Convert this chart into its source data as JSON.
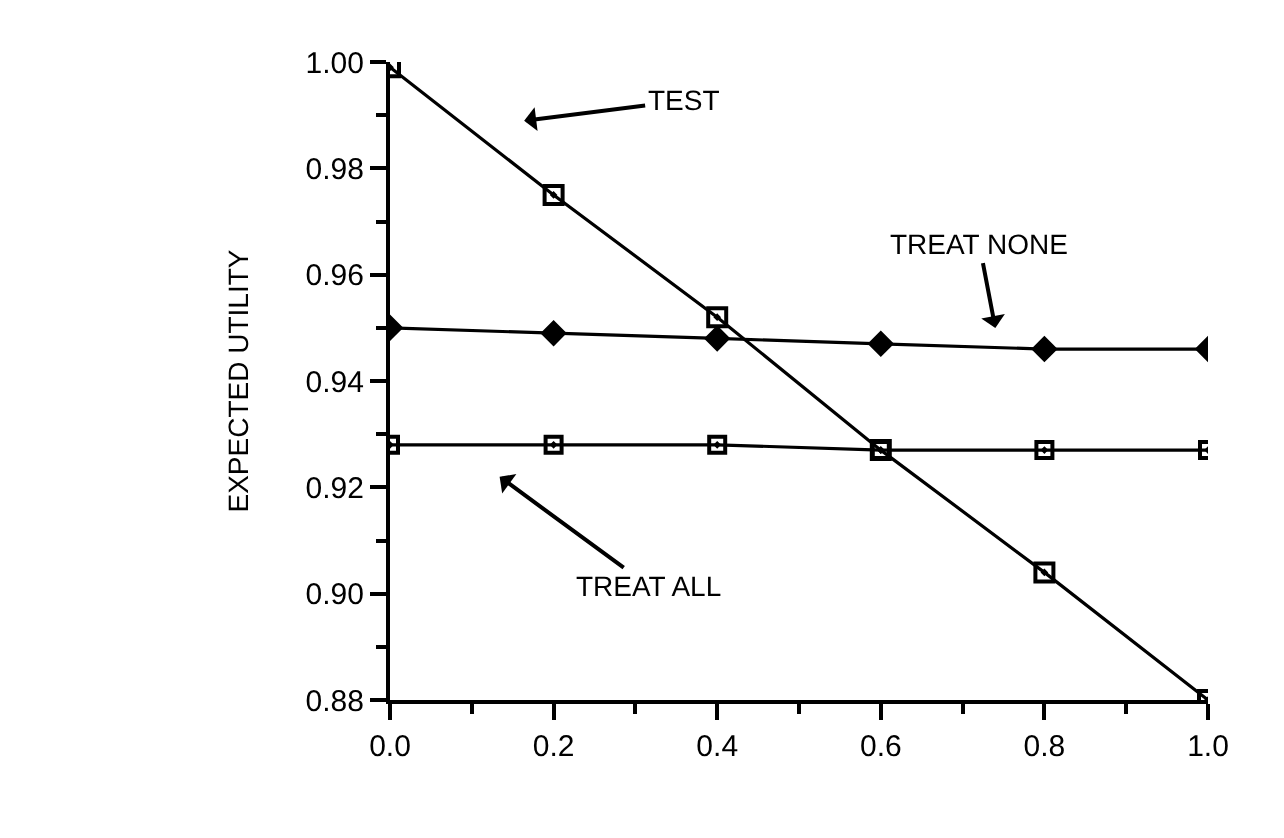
{
  "chart_data": {
    "type": "line",
    "ylabel": "EXPECTED UTILITY",
    "x": [
      0.0,
      0.2,
      0.4,
      0.6,
      0.8,
      1.0
    ],
    "series": [
      {
        "color": "#000000",
        "marker": "square",
        "values": [
          0.999,
          0.975,
          0.952,
          0.927,
          0.904,
          0.88
        ]
      },
      {
        "color": "#000000",
        "marker": "diamond",
        "values": [
          0.95,
          0.949,
          0.948,
          0.947,
          0.946,
          0.946
        ]
      },
      {
        "color": "#000000",
        "marker": "square",
        "values": [
          0.928,
          0.928,
          0.928,
          0.927,
          0.927,
          0.927
        ]
      }
    ],
    "annotations": [
      "TEST",
      "TREAT NONE",
      "TREAT ALL"
    ],
    "xlim": [
      0.0,
      1.0
    ],
    "xticks": [
      {
        "value": 0.0,
        "label": "0.0"
      },
      0.2,
      0.4,
      0.6,
      0.8,
      {
        "value": 1.0,
        "label": "1.0"
      }
    ],
    "ylim": [
      0.88,
      1.0
    ],
    "yticks": [
      {
        "value": 0.88,
        "label": "0.88"
      },
      {
        "value": 0.9,
        "label": "0.90"
      },
      0.92,
      0.94,
      0.96,
      0.98,
      {
        "value": 1.0,
        "label": "1.00"
      }
    ],
    "line_style": "solid"
  }
}
